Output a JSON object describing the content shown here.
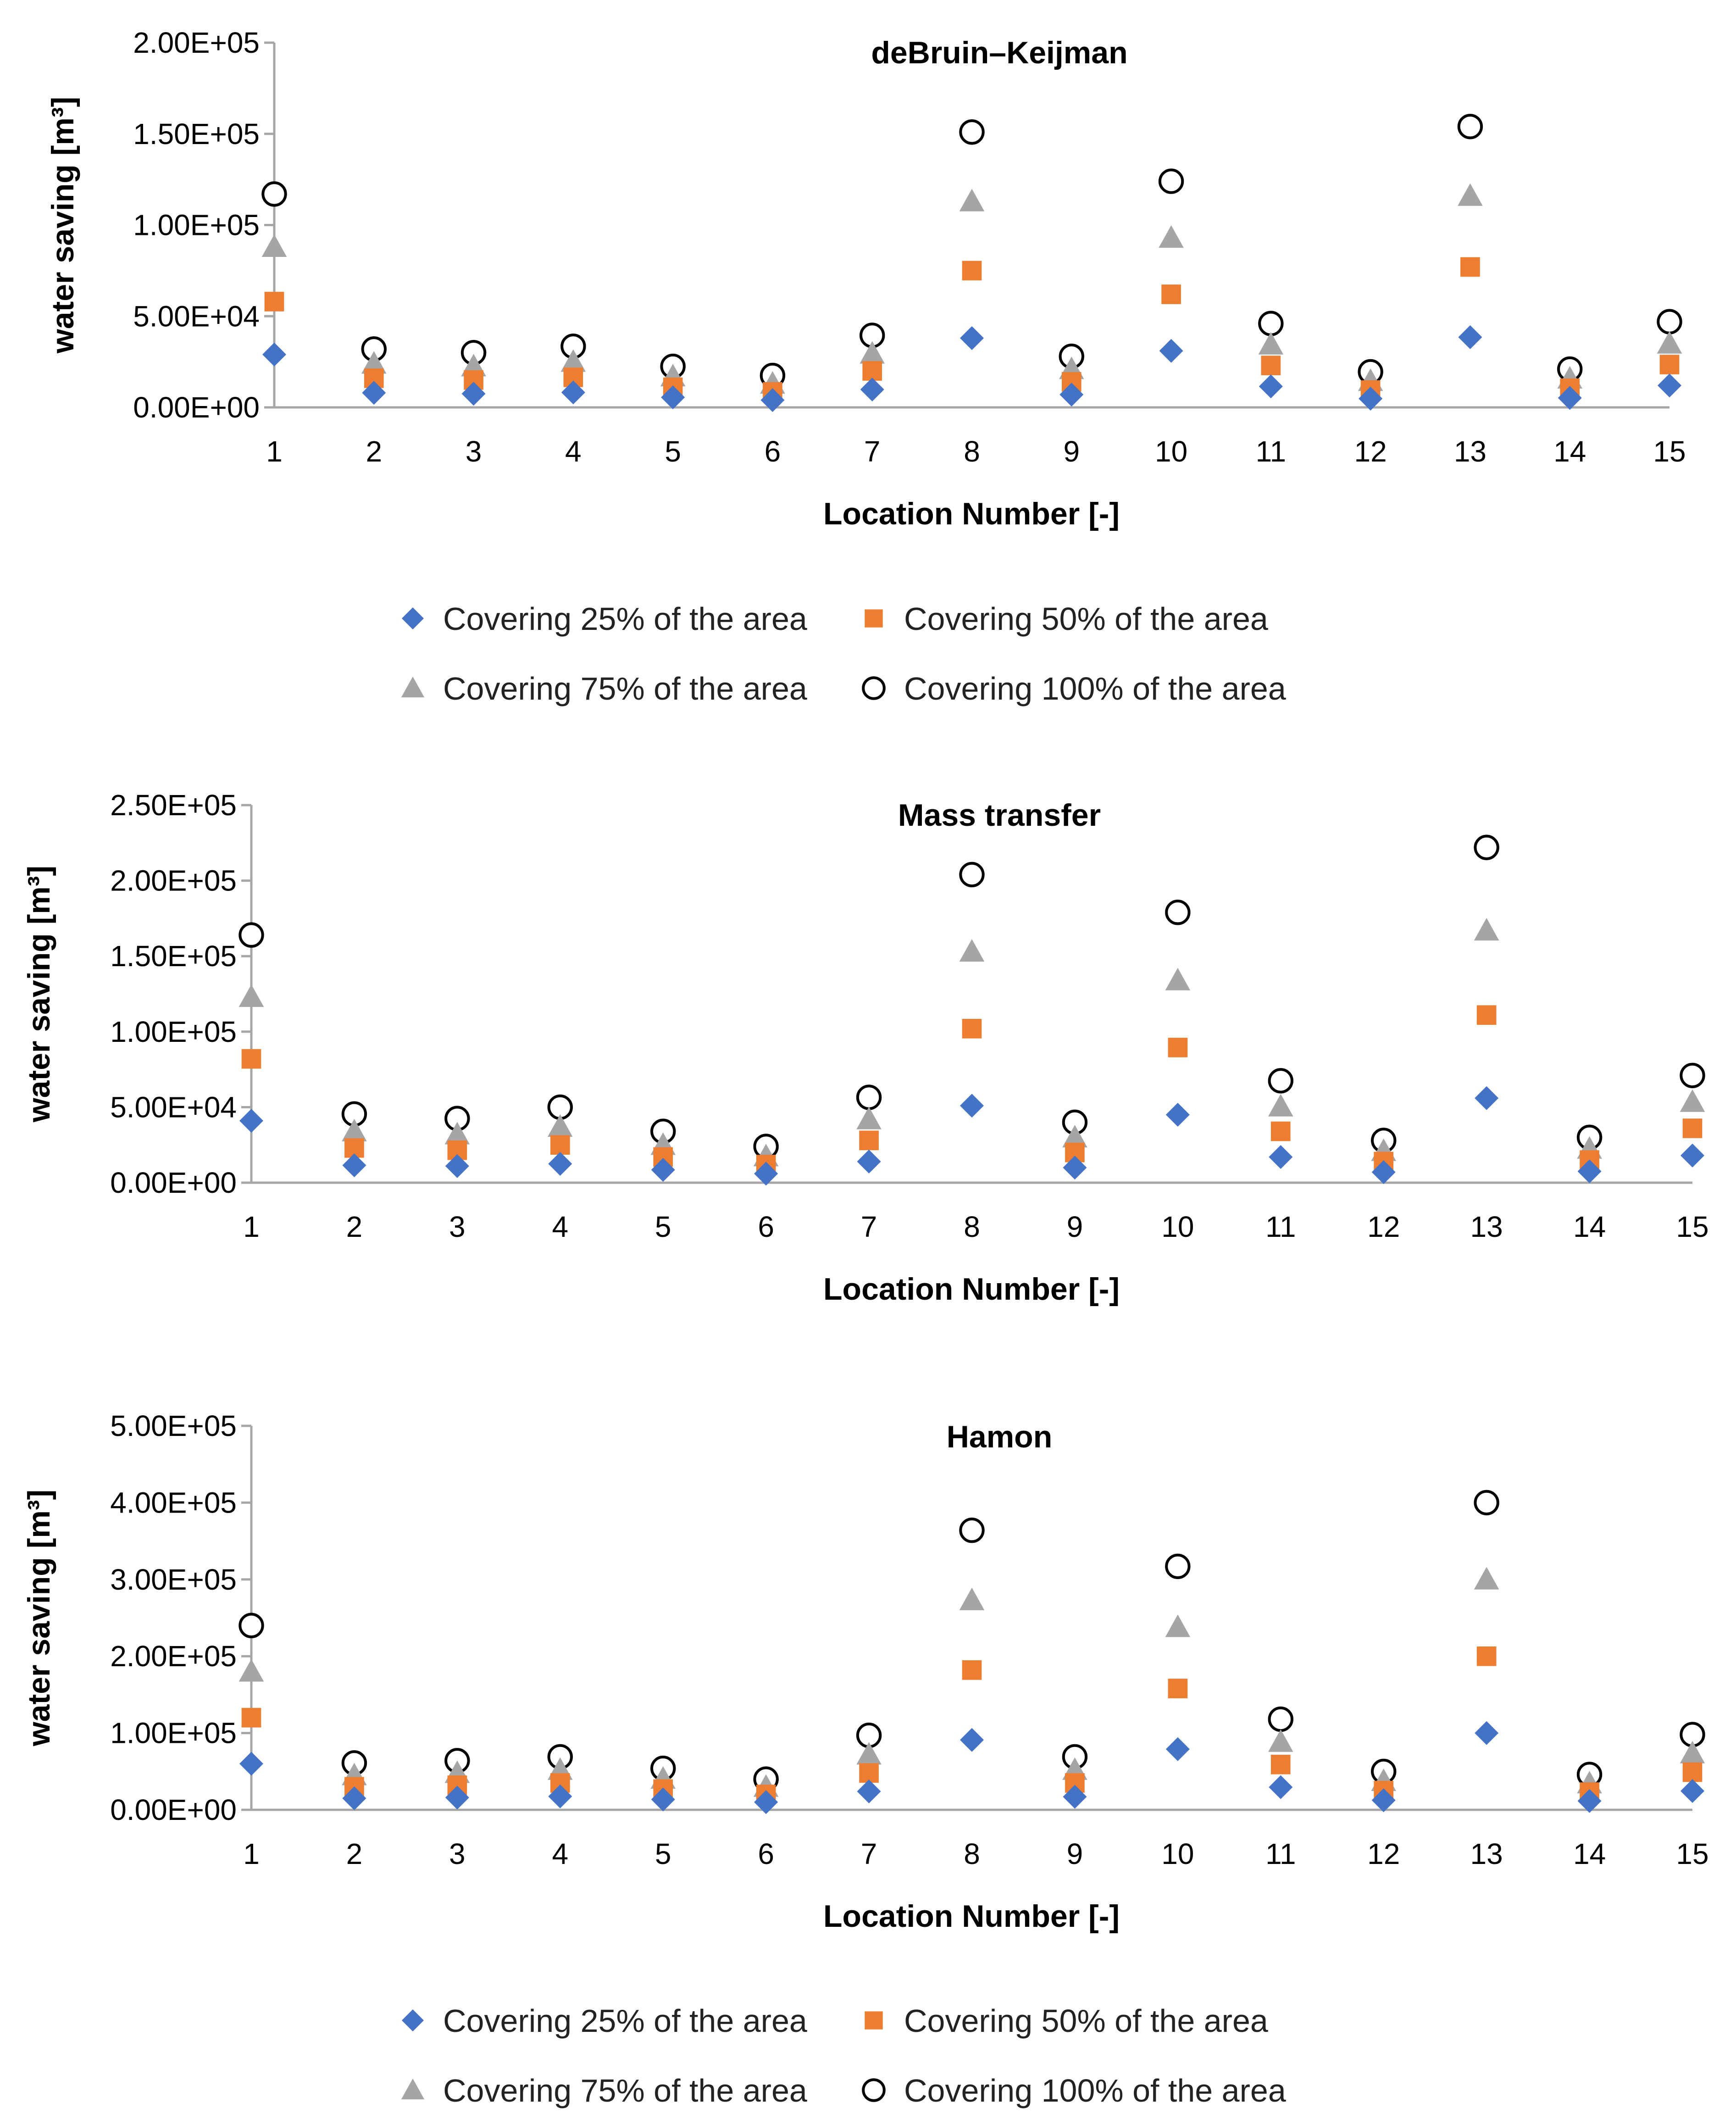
{
  "legend_labels": [
    "Covering 25% of the area",
    "Covering 50% of the area",
    "Covering 75% of the area",
    "Covering 100% of the area"
  ],
  "colors": {
    "s25": "#4472C4",
    "s50": "#ED7D31",
    "s75": "#A5A5A5",
    "s100": "#000000"
  },
  "chart_data": [
    {
      "type": "scatter",
      "title": "deBruin–Keijman",
      "xlabel": "Location Number [-]",
      "ylabel": "water saving [m³]",
      "ylim": [
        0,
        200000
      ],
      "ytick_labels": [
        "0.00E+00",
        "5.00E+04",
        "1.00E+05",
        "1.50E+05",
        "2.00E+05"
      ],
      "x": [
        1,
        2,
        3,
        4,
        5,
        6,
        7,
        8,
        9,
        10,
        11,
        12,
        13,
        14,
        15
      ],
      "series": [
        {
          "name": "Covering 25% of the area",
          "values": [
            29000,
            8000,
            7500,
            8200,
            5500,
            4000,
            9800,
            38000,
            7000,
            31000,
            11500,
            4800,
            38500,
            5200,
            12000
          ]
        },
        {
          "name": "Covering 50% of the area",
          "values": [
            58000,
            16000,
            15000,
            16500,
            11000,
            8500,
            20000,
            75000,
            14000,
            62000,
            23000,
            9500,
            77000,
            10500,
            23500
          ]
        },
        {
          "name": "Covering 75% of the area",
          "values": [
            88000,
            24000,
            22500,
            25000,
            17000,
            13000,
            29500,
            113000,
            21000,
            93000,
            34500,
            14500,
            116000,
            15800,
            35000
          ]
        },
        {
          "name": "Covering 100% of the area",
          "values": [
            117000,
            32000,
            30000,
            33500,
            22500,
            17500,
            39500,
            151000,
            28000,
            124000,
            46000,
            19500,
            154000,
            21000,
            47000
          ]
        }
      ]
    },
    {
      "type": "scatter",
      "title": "Mass transfer",
      "xlabel": "Location Number [-]",
      "ylabel": "water saving [m³]",
      "ylim": [
        0,
        250000
      ],
      "ytick_labels": [
        "0.00E+00",
        "5.00E+04",
        "1.00E+05",
        "1.50E+05",
        "2.00E+05",
        "2.50E+05"
      ],
      "x": [
        1,
        2,
        3,
        4,
        5,
        6,
        7,
        8,
        9,
        10,
        11,
        12,
        13,
        14,
        15
      ],
      "series": [
        {
          "name": "Covering 25% of the area",
          "values": [
            41000,
            11500,
            11000,
            12500,
            8500,
            6000,
            14000,
            51000,
            10000,
            45000,
            17000,
            7000,
            56000,
            7500,
            18000
          ]
        },
        {
          "name": "Covering 50% of the area",
          "values": [
            82000,
            23000,
            21500,
            25000,
            17000,
            12000,
            28000,
            102000,
            20000,
            89500,
            34000,
            14000,
            111000,
            15000,
            36000
          ]
        },
        {
          "name": "Covering 75% of the area",
          "values": [
            123000,
            34000,
            32000,
            37000,
            25000,
            17500,
            42000,
            153000,
            30000,
            134000,
            50500,
            21000,
            167000,
            22500,
            53500
          ]
        },
        {
          "name": "Covering 100% of the area",
          "values": [
            164000,
            45500,
            42500,
            50000,
            34000,
            24000,
            56500,
            204000,
            40000,
            179000,
            67500,
            28000,
            222000,
            30000,
            71000
          ]
        }
      ]
    },
    {
      "type": "scatter",
      "title": "Hamon",
      "xlabel": "Location Number [-]",
      "ylabel": "water saving [m³]",
      "ylim": [
        0,
        500000
      ],
      "ytick_labels": [
        "0.00E+00",
        "1.00E+05",
        "2.00E+05",
        "3.00E+05",
        "4.00E+05",
        "5.00E+05"
      ],
      "x": [
        1,
        2,
        3,
        4,
        5,
        6,
        7,
        8,
        9,
        10,
        11,
        12,
        13,
        14,
        15
      ],
      "series": [
        {
          "name": "Covering 25% of the area",
          "values": [
            60000,
            15000,
            16000,
            17500,
            13500,
            10000,
            24000,
            91000,
            17000,
            79000,
            29500,
            12500,
            100000,
            11500,
            24500
          ]
        },
        {
          "name": "Covering 50% of the area",
          "values": [
            120000,
            30000,
            32000,
            35000,
            27000,
            20000,
            48000,
            182000,
            35000,
            158000,
            59000,
            25000,
            200000,
            23000,
            49000
          ]
        },
        {
          "name": "Covering 75% of the area",
          "values": [
            180000,
            45000,
            48000,
            52000,
            40500,
            30000,
            72000,
            273000,
            52000,
            238000,
            88500,
            37500,
            300000,
            34500,
            73500
          ]
        },
        {
          "name": "Covering 100% of the area",
          "values": [
            240000,
            61000,
            64000,
            69000,
            54000,
            40000,
            97000,
            364000,
            69000,
            317000,
            118000,
            50000,
            400000,
            46000,
            98000
          ]
        }
      ]
    }
  ]
}
